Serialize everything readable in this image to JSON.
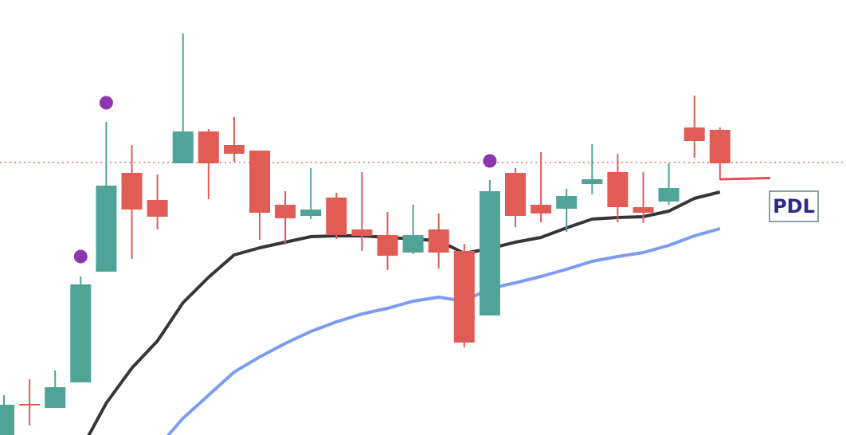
{
  "chart_data": {
    "type": "candlestick",
    "categories": [
      null,
      null,
      null,
      null,
      null,
      null,
      null,
      null,
      null,
      null,
      null,
      null,
      null,
      null,
      null,
      null,
      null,
      null,
      null,
      null,
      null,
      null,
      null,
      null,
      null,
      null,
      null,
      null,
      null
    ],
    "open": [
      0,
      39,
      34,
      66,
      205,
      329,
      295,
      341,
      381,
      364,
      357,
      289,
      275,
      298,
      258,
      251,
      229,
      258,
      231,
      150,
      329,
      289,
      284,
      315,
      330,
      286,
      293,
      386,
      383
    ],
    "high": [
      50,
      70,
      81,
      199,
      393,
      364,
      327,
      504,
      384,
      399,
      357,
      306,
      335,
      304,
      330,
      280,
      289,
      278,
      240,
      320,
      335,
      355,
      309,
      365,
      353,
      330,
      341,
      426,
      386
    ],
    "low": [
      0,
      12,
      34,
      66,
      205,
      221,
      258,
      341,
      296,
      343,
      245,
      239,
      271,
      246,
      231,
      207,
      227,
      209,
      110,
      150,
      261,
      267,
      255,
      302,
      267,
      266,
      289,
      348,
      320
    ],
    "close": [
      38,
      37,
      60,
      189,
      313,
      283,
      274,
      381,
      341,
      353,
      279,
      272,
      283,
      251,
      250,
      225,
      251,
      229,
      116,
      306,
      275,
      278,
      300,
      321,
      286,
      279,
      310,
      369,
      341
    ],
    "up_color": "#4fa397",
    "down_color": "#e05c55",
    "lines": [
      {
        "color": "#363636",
        "values": [
          null,
          null,
          null,
          -19,
          40,
          84,
          118,
          166,
          198,
          226,
          235,
          242,
          249,
          250,
          250,
          248,
          246,
          244,
          228,
          234,
          242,
          248,
          260,
          271,
          273,
          274,
          281,
          297,
          305
        ]
      },
      {
        "color": "#7b9cf0",
        "values": [
          null,
          null,
          null,
          null,
          null,
          null,
          -16,
          21,
          50,
          79,
          98,
          115,
          130,
          142,
          152,
          159,
          168,
          173,
          168,
          184,
          191,
          199,
          208,
          218,
          224,
          229,
          238,
          250,
          259
        ]
      }
    ],
    "markers": {
      "color": "#8e35b0",
      "values": [
        null,
        null,
        null,
        224,
        417,
        null,
        null,
        null,
        null,
        null,
        null,
        null,
        null,
        null,
        null,
        null,
        null,
        null,
        null,
        344,
        null,
        null,
        null,
        null,
        null,
        null,
        null,
        null,
        null
      ]
    },
    "levels": [
      {
        "value": 342,
        "color": "#d9534f"
      }
    ],
    "annotation": {
      "text": "PDL",
      "value": 321,
      "color": "#e05050"
    },
    "ylim": [
      0,
      546
    ]
  }
}
